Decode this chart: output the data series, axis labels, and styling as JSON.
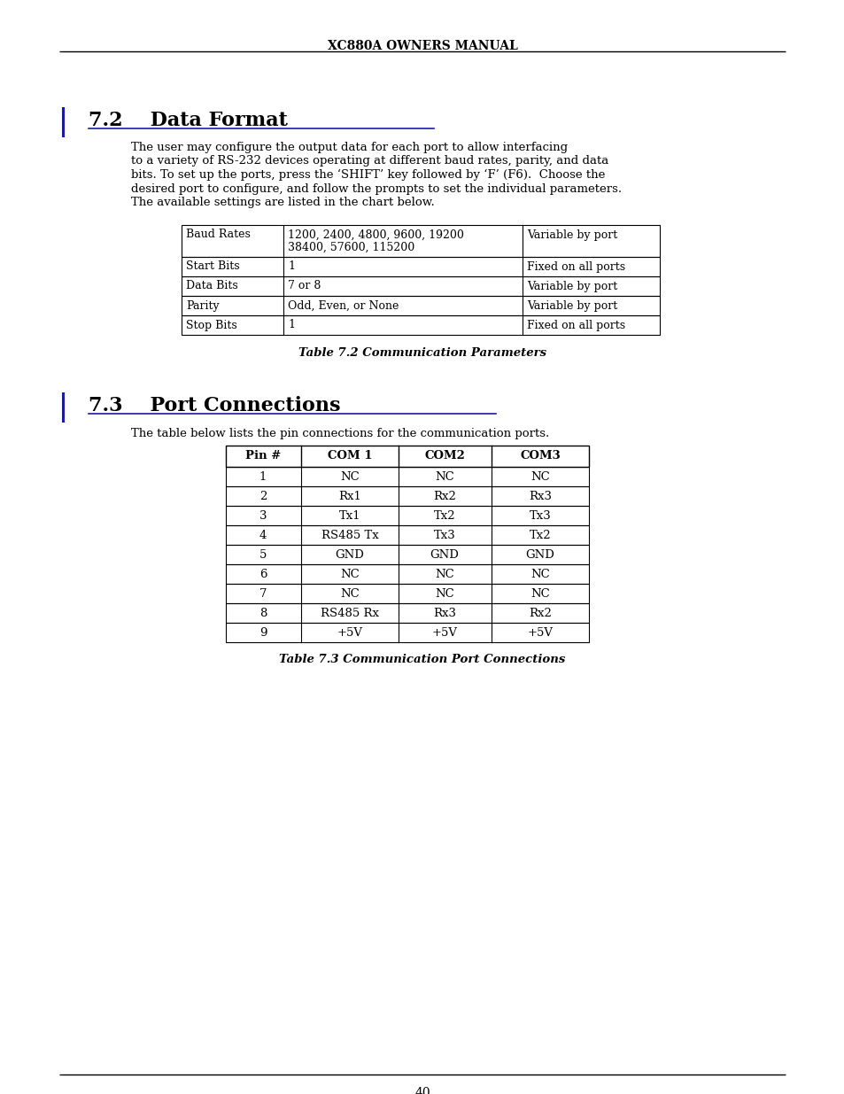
{
  "page_title": "XC880A OWNERS MANUAL",
  "page_number": "40",
  "background_color": "#ffffff",
  "text_color": "#000000",
  "section_bar_color": "#1a1aaa",
  "underline_color": "#1a1aaa",
  "section1_number": "7.2",
  "section1_title": "    Data Format",
  "section1_body_indent": 148,
  "section1_body": "The user may configure the output data for each port to allow interfacing\nto a variety of RS-232 devices operating at different baud rates, parity, and data\nbits. To set up the ports, press the ‘SHIFT’ key followed by ‘F’ (F6).  Choose the\ndesired port to configure, and follow the prompts to set the individual parameters.\nThe available settings are listed in the chart below.",
  "table1_caption": "Table 7.2 Communication Parameters",
  "table1_baud_line1": "1200, 2400, 4800, 9600, 19200",
  "table1_baud_line2": "38400, 57600, 115200",
  "table1_baud_col3": "Variable by port",
  "table1_rows": [
    [
      "Start Bits",
      "1",
      "Fixed on all ports"
    ],
    [
      "Data Bits",
      "7 or 8",
      "Variable by port"
    ],
    [
      "Parity",
      "Odd, Even, or None",
      "Variable by port"
    ],
    [
      "Stop Bits",
      "1",
      "Fixed on all ports"
    ]
  ],
  "section2_number": "7.3",
  "section2_title": "    Port Connections",
  "section2_intro": "The table below lists the pin connections for the communication ports.",
  "table2_caption": "Table 7.3 Communication Port Connections",
  "table2_headers": [
    "Pin #",
    "COM 1",
    "COM2",
    "COM3"
  ],
  "table2_rows": [
    [
      "1",
      "NC",
      "NC",
      "NC"
    ],
    [
      "2",
      "Rx1",
      "Rx2",
      "Rx3"
    ],
    [
      "3",
      "Tx1",
      "Tx2",
      "Tx3"
    ],
    [
      "4",
      "RS485 Tx",
      "Tx3",
      "Tx2"
    ],
    [
      "5",
      "GND",
      "GND",
      "GND"
    ],
    [
      "6",
      "NC",
      "NC",
      "NC"
    ],
    [
      "7",
      "NC",
      "NC",
      "NC"
    ],
    [
      "8",
      "RS485 Rx",
      "Rx3",
      "Rx2"
    ],
    [
      "9",
      "+5V",
      "+5V",
      "+5V"
    ]
  ]
}
